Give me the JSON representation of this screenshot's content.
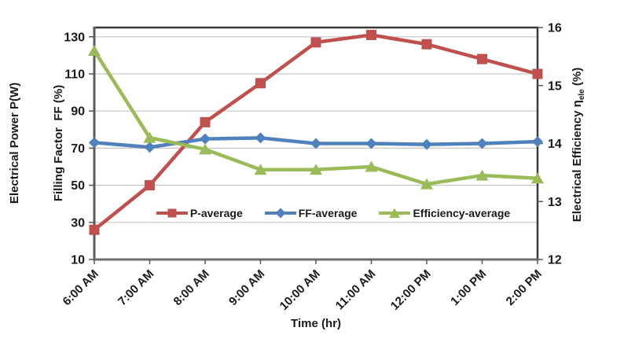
{
  "chart_data": {
    "type": "line",
    "title": "",
    "x_axis": {
      "label": "Time (hr)",
      "categories": [
        "6:00 AM",
        "7:00 AM",
        "8:00 AM",
        "9:00 AM",
        "10:00 AM",
        "11:00 AM",
        "12:00 PM",
        "1:00 PM",
        "2:00 PM"
      ]
    },
    "y_axis_left": {
      "label_line1": "Electrical Power P(W)",
      "label_line2": "Filling Factor  FF (%)",
      "ticks": [
        10,
        30,
        50,
        70,
        90,
        110,
        130
      ],
      "range": [
        10,
        135
      ]
    },
    "y_axis_right": {
      "label_main": "Electrical Efficiency η",
      "label_sub": "ele",
      "label_suffix": " (%)",
      "ticks": [
        12,
        13,
        14,
        15,
        16
      ],
      "range": [
        12,
        16
      ]
    },
    "grid": "horizontal",
    "legend_position": "inside-bottom-center",
    "series": [
      {
        "name": "P-average",
        "axis": "left",
        "marker": "square",
        "color": "#C0504D",
        "values": [
          26,
          50,
          84,
          105,
          127,
          131,
          126,
          118,
          110
        ]
      },
      {
        "name": "FF-average",
        "axis": "left",
        "marker": "diamond",
        "color": "#4F81BD",
        "values": [
          73,
          70.5,
          75,
          75.5,
          72.5,
          72.5,
          72,
          72.5,
          73.5
        ]
      },
      {
        "name": "Efficiency-average",
        "axis": "right",
        "marker": "triangle",
        "color": "#9BBB59",
        "values": [
          15.6,
          14.1,
          13.9,
          13.55,
          13.55,
          13.6,
          13.3,
          13.45,
          13.4
        ]
      }
    ]
  },
  "colors": {
    "background": "#FFFFFF",
    "gridline": "#C6C6C6",
    "plot_border": "#3A3A3A",
    "axis_line": "#5A5A5A",
    "tick": "#595959",
    "text": "#1A1A1A"
  }
}
